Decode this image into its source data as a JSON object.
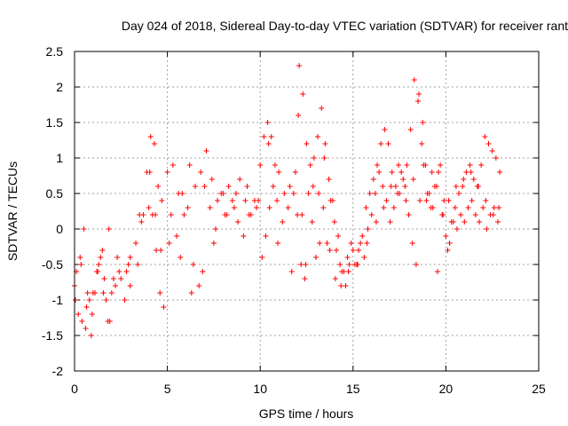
{
  "colors": {
    "series": "#ff0000",
    "grid": "#a0a0a0",
    "frame": "#000000",
    "background": "#ffffff"
  },
  "chart_data": {
    "type": "scatter",
    "title": "Day 024 of 2018, Sidereal Day-to-day VTEC variation (SDTVAR) for receiver rant",
    "xlabel": "GPS time / hours",
    "ylabel": "SDTVAR / TECUs",
    "xlim": [
      0,
      25
    ],
    "ylim": [
      -2,
      2.5
    ],
    "grid": true,
    "marker": "plus",
    "x_ticks": [
      0,
      5,
      10,
      15,
      20,
      25
    ],
    "x_tick_labels": [
      "0",
      "5",
      "10",
      "15",
      "20",
      "25"
    ],
    "y_ticks": [
      -2,
      -1.5,
      -1,
      -0.5,
      0,
      0.5,
      1,
      1.5,
      2,
      2.5
    ],
    "y_tick_labels": [
      "-2",
      "-1.5",
      "-1",
      "-0.5",
      "0",
      "0.5",
      "1",
      "1.5",
      "2",
      "2.5"
    ],
    "series": [
      {
        "name": "SDTVAR",
        "x": [
          0.0,
          0.2,
          0.4,
          0.6,
          0.8,
          1.0,
          1.2,
          1.4,
          1.6,
          1.8,
          2.0,
          2.2,
          2.5,
          2.8,
          3.0,
          3.3,
          3.6,
          3.9,
          4.1,
          4.3,
          4.5,
          4.7,
          5.0,
          5.3,
          5.6,
          5.9,
          6.2,
          6.5,
          6.8,
          7.1,
          7.4,
          7.7,
          8.0,
          8.3,
          8.6,
          8.9,
          9.2,
          9.5,
          9.8,
          10.0,
          10.2,
          10.4,
          10.6,
          10.8,
          11.0,
          11.3,
          11.6,
          11.9,
          12.1,
          12.3,
          12.5,
          12.7,
          12.9,
          13.1,
          13.3,
          13.5,
          13.7,
          13.9,
          14.1,
          14.3,
          14.5,
          14.7,
          14.9,
          15.1,
          15.3,
          15.5,
          15.7,
          15.9,
          16.1,
          16.3,
          16.5,
          16.7,
          16.9,
          17.1,
          17.3,
          17.5,
          17.7,
          17.9,
          18.1,
          18.3,
          18.5,
          18.7,
          18.9,
          19.1,
          19.3,
          19.5,
          19.7,
          19.9,
          20.1,
          20.3,
          20.5,
          20.7,
          20.9,
          21.1,
          21.3,
          21.5,
          21.7,
          21.9,
          22.1,
          22.3,
          22.5,
          22.7,
          22.9,
          0.1,
          0.3,
          0.5,
          0.7,
          0.9,
          1.1,
          1.3,
          1.5,
          1.7,
          1.9,
          2.1,
          2.4,
          2.7,
          3.0,
          3.4,
          3.7,
          4.0,
          4.2,
          4.4,
          4.6,
          4.8,
          5.2,
          5.5,
          5.8,
          6.1,
          6.4,
          6.7,
          7.0,
          7.3,
          7.6,
          7.9,
          8.2,
          8.5,
          8.8,
          9.1,
          9.4,
          9.7,
          10.1,
          10.3,
          10.5,
          10.7,
          10.9,
          11.2,
          11.5,
          11.8,
          12.0,
          12.2,
          12.4,
          12.6,
          12.8,
          13.0,
          13.2,
          13.4,
          13.6,
          13.8,
          14.0,
          14.2,
          14.4,
          14.6,
          14.8,
          15.0,
          15.2,
          15.4,
          15.6,
          15.8,
          16.0,
          16.2,
          16.4,
          16.6,
          16.8,
          17.0,
          17.2,
          17.4,
          17.6,
          17.8,
          18.0,
          18.2,
          18.4,
          18.6,
          18.8,
          19.0,
          19.2,
          19.4,
          19.6,
          19.8,
          20.0,
          20.2,
          20.4,
          20.6,
          20.8,
          21.0,
          21.2,
          21.4,
          21.6,
          21.8,
          22.0,
          22.2,
          22.4,
          22.6,
          22.8,
          0.05,
          0.35,
          0.65,
          0.95,
          1.25,
          1.55,
          1.85,
          2.3,
          2.9,
          3.5,
          4.05,
          4.35,
          4.65,
          5.1,
          5.7,
          6.3,
          6.9,
          7.5,
          8.1,
          8.7,
          9.3,
          9.9,
          10.45,
          10.95,
          11.7,
          12.05,
          12.25,
          12.45,
          12.85,
          13.15,
          13.45,
          13.75,
          14.05,
          14.35,
          14.75,
          15.25,
          15.75,
          16.25,
          16.65,
          17.05,
          17.45,
          17.85,
          18.25,
          18.55,
          18.75,
          18.95,
          19.25,
          19.55,
          19.85,
          20.15,
          20.55,
          20.95,
          21.35,
          21.75,
          22.15,
          22.55,
          22.85
        ],
        "y": [
          -0.8,
          -1.2,
          -1.3,
          -1.4,
          -1.0,
          -0.9,
          -0.6,
          -0.4,
          -0.7,
          -1.3,
          -0.9,
          -0.8,
          -0.7,
          -0.6,
          -0.4,
          -0.2,
          0.1,
          0.8,
          1.3,
          1.2,
          0.6,
          0.4,
          0.8,
          0.9,
          0.5,
          0.2,
          0.9,
          0.6,
          0.8,
          1.1,
          0.7,
          0.4,
          0.5,
          0.6,
          0.3,
          0.7,
          0.4,
          0.2,
          0.3,
          0.9,
          1.3,
          1.5,
          1.3,
          0.9,
          0.8,
          0.5,
          0.6,
          0.8,
          2.3,
          1.9,
          1.2,
          0.9,
          1.0,
          1.3,
          1.7,
          1.2,
          0.7,
          0.4,
          -0.3,
          -0.5,
          -0.6,
          -0.4,
          -0.2,
          -0.5,
          -0.3,
          -0.1,
          0.3,
          0.5,
          0.7,
          0.9,
          1.2,
          1.4,
          1.2,
          0.8,
          0.6,
          0.5,
          0.7,
          0.9,
          1.4,
          2.1,
          1.8,
          1.2,
          0.9,
          0.5,
          0.3,
          0.6,
          0.9,
          0.4,
          -0.3,
          0.1,
          0.3,
          0.5,
          0.6,
          0.8,
          0.9,
          0.7,
          0.6,
          0.9,
          1.3,
          1.2,
          1.1,
          1.0,
          0.8,
          -0.6,
          -0.4,
          0.0,
          -0.9,
          -1.5,
          -0.9,
          -0.5,
          -0.3,
          -1.0,
          -1.3,
          -0.7,
          -0.6,
          -1.0,
          -0.8,
          -0.5,
          0.2,
          0.3,
          0.2,
          -0.3,
          -0.9,
          -1.1,
          0.2,
          -0.1,
          0.5,
          0.3,
          -0.5,
          -0.8,
          0.6,
          0.3,
          0.0,
          0.5,
          0.2,
          0.4,
          0.1,
          -0.1,
          0.2,
          0.4,
          -0.4,
          -0.1,
          0.3,
          0.6,
          0.4,
          0.1,
          0.3,
          0.5,
          0.2,
          -0.5,
          -0.7,
          0.5,
          0.1,
          -0.4,
          -0.2,
          0.3,
          -0.2,
          0.4,
          0.1,
          -0.1,
          -0.6,
          -0.8,
          -0.5,
          -0.3,
          -0.5,
          -0.2,
          -0.4,
          0.0,
          0.2,
          0.5,
          0.8,
          0.6,
          0.4,
          0.1,
          0.3,
          0.5,
          0.8,
          0.6,
          0.2,
          -0.2,
          -0.5,
          0.4,
          0.9,
          0.5,
          0.3,
          0.6,
          0.8,
          0.2,
          -0.1,
          -0.2,
          0.1,
          0.0,
          0.2,
          0.1,
          0.3,
          0.4,
          0.2,
          0.1,
          0.3,
          0.0,
          0.2,
          0.3,
          0.1,
          -1.0,
          -0.5,
          -1.1,
          -1.2,
          -0.6,
          -0.9,
          0.0,
          -0.4,
          -0.5,
          0.2,
          0.8,
          0.2,
          -0.3,
          -0.2,
          -0.4,
          -0.9,
          -0.6,
          -0.2,
          0.2,
          0.5,
          0.6,
          0.4,
          1.2,
          -0.2,
          -0.6,
          1.6,
          0.2,
          -0.5,
          0.6,
          0.5,
          1.0,
          -0.3,
          -0.7,
          -0.8,
          -0.6,
          -0.5,
          -0.2,
          0.1,
          0.3,
          0.6,
          0.9,
          0.4,
          0.7,
          1.9,
          1.5,
          0.4,
          0.8,
          -0.6,
          0.2,
          0.4,
          0.6,
          0.7,
          0.8,
          0.6,
          0.4,
          0.2,
          0.3
        ]
      }
    ]
  }
}
